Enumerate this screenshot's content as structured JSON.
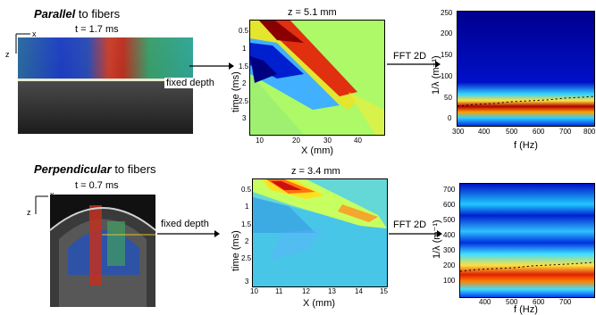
{
  "rows": [
    {
      "title_emph": "Parallel",
      "title_rest": " to fibers",
      "time_label": "t = 1.7 ms",
      "fixed_depth": "fixed depth",
      "fft_label": "FFT 2D",
      "axis_x": "x",
      "axis_z": "z",
      "mid_panel": {
        "title": "z = 5.1 mm",
        "ylabel": "time (ms)",
        "xlabel": "X (mm)",
        "yticks": [
          "0.5",
          "1",
          "1.5",
          "2",
          "2.5",
          "3"
        ],
        "xticks": [
          "10",
          "20",
          "30",
          "40"
        ]
      },
      "right_panel": {
        "ylabel": "1/λ (m⁻¹)",
        "xlabel": "f (Hz)",
        "yticks": [
          "250",
          "200",
          "150",
          "100",
          "50",
          "0"
        ],
        "xticks": [
          "300",
          "400",
          "500",
          "600",
          "700",
          "800"
        ]
      }
    },
    {
      "title_emph": "Perpendicular",
      "title_rest": " to fibers",
      "time_label": "t = 0.7 ms",
      "fixed_depth": "fixed depth",
      "fft_label": "FFT 2D",
      "axis_x": "x",
      "axis_z": "z",
      "mid_panel": {
        "title": "z = 3.4 mm",
        "ylabel": "time (ms)",
        "xlabel": "X (mm)",
        "yticks": [
          "0.5",
          "1",
          "1.5",
          "2",
          "2.5",
          "3"
        ],
        "xticks": [
          "10",
          "11",
          "12",
          "13",
          "14",
          "15"
        ]
      },
      "right_panel": {
        "ylabel": "1/λ (m⁻¹)",
        "xlabel": "f (Hz)",
        "yticks": [
          "700",
          "600",
          "500",
          "400",
          "300",
          "200",
          "100"
        ],
        "xticks": [
          "400",
          "500",
          "600",
          "700"
        ]
      }
    }
  ],
  "colors": {
    "jet_low": "#00008f",
    "jet_mid": "#7fff7f",
    "jet_high": "#800000",
    "bg_cyan": "#48c6e8"
  }
}
